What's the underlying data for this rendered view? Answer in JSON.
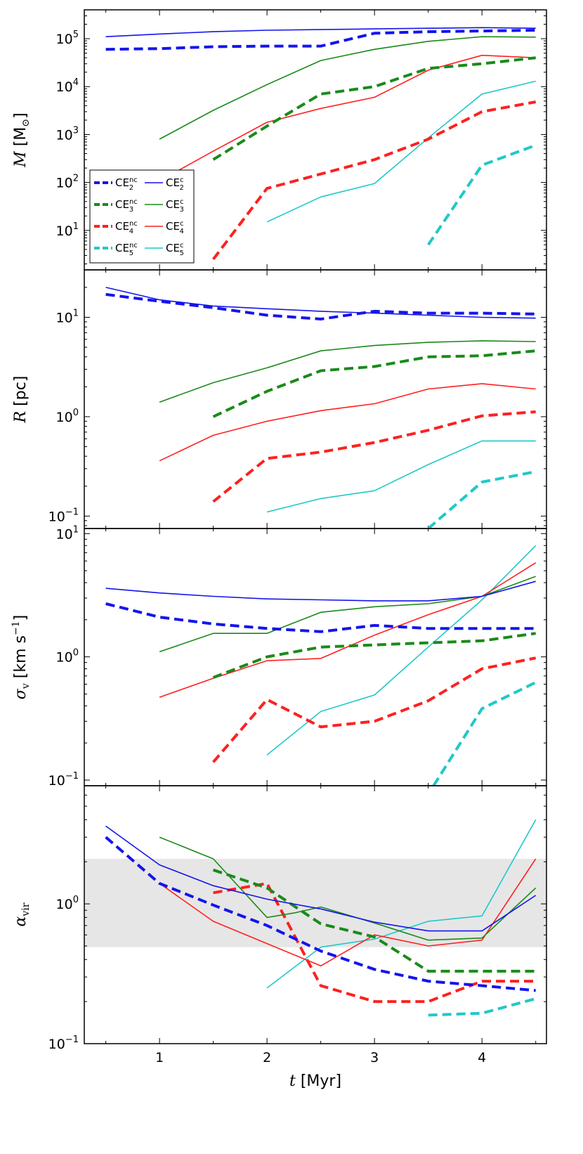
{
  "figure": {
    "xlabel_var": "t",
    "xlabel_unit": "[Myr]",
    "xlim": [
      0.3,
      4.6
    ],
    "xticks": [
      1,
      2,
      3,
      4
    ],
    "xtick_labels": [
      "1",
      "2",
      "3",
      "4"
    ]
  },
  "colors": {
    "CE2": "#1414ee",
    "CE3": "#1a8a1a",
    "CE4": "#ff2020",
    "CE5": "#20c8c8",
    "band": "#e6e6e6"
  },
  "legend": {
    "entries": [
      {
        "key": "CE2nc",
        "base": "CE",
        "sub": "2",
        "sup": "nc",
        "color": "CE2",
        "dashed": true
      },
      {
        "key": "CE2c",
        "base": "CE",
        "sub": "2",
        "sup": "c",
        "color": "CE2",
        "dashed": false
      },
      {
        "key": "CE3nc",
        "base": "CE",
        "sub": "3",
        "sup": "nc",
        "color": "CE3",
        "dashed": true
      },
      {
        "key": "CE3c",
        "base": "CE",
        "sub": "3",
        "sup": "c",
        "color": "CE3",
        "dashed": false
      },
      {
        "key": "CE4nc",
        "base": "CE",
        "sub": "4",
        "sup": "nc",
        "color": "CE4",
        "dashed": true
      },
      {
        "key": "CE4c",
        "base": "CE",
        "sub": "4",
        "sup": "c",
        "color": "CE4",
        "dashed": false
      },
      {
        "key": "CE5nc",
        "base": "CE",
        "sub": "5",
        "sup": "nc",
        "color": "CE5",
        "dashed": true
      },
      {
        "key": "CE5c",
        "base": "CE",
        "sub": "5",
        "sup": "c",
        "color": "CE5",
        "dashed": false
      }
    ]
  },
  "chart_data": [
    {
      "type": "line",
      "title": "",
      "ylabel": {
        "var": "M",
        "unit": "[M",
        "unit_sub": "⊙",
        "unit_end": "]"
      },
      "yscale": "log",
      "ylim": [
        1.5,
        400000
      ],
      "yticks": [
        {
          "value": 10,
          "base": "10",
          "exp": "1"
        },
        {
          "value": 100,
          "base": "10",
          "exp": "2"
        },
        {
          "value": 1000,
          "base": "10",
          "exp": "3"
        },
        {
          "value": 10000,
          "base": "10",
          "exp": "4"
        },
        {
          "value": 100000,
          "base": "10",
          "exp": "5"
        }
      ],
      "series": [
        {
          "key": "CE2c",
          "x": [
            0.5,
            1,
            1.5,
            2,
            2.5,
            3,
            3.5,
            4,
            4.5
          ],
          "y": [
            110000,
            125000,
            140000,
            150000,
            155000,
            160000,
            165000,
            170000,
            165000
          ]
        },
        {
          "key": "CE2nc",
          "x": [
            0.5,
            1,
            1.5,
            2,
            2.5,
            3,
            3.5,
            4,
            4.5
          ],
          "y": [
            60000,
            62000,
            68000,
            70000,
            70000,
            130000,
            140000,
            145000,
            150000
          ]
        },
        {
          "key": "CE3c",
          "x": [
            1,
            1.5,
            2,
            2.5,
            3,
            3.5,
            4,
            4.5
          ],
          "y": [
            800,
            3200,
            11000,
            35000,
            60000,
            88000,
            110000,
            108000
          ]
        },
        {
          "key": "CE3nc",
          "x": [
            1.5,
            2,
            2.5,
            3,
            3.5,
            4,
            4.5
          ],
          "y": [
            300,
            1500,
            7000,
            10000,
            24000,
            30000,
            40000
          ]
        },
        {
          "key": "CE4c",
          "x": [
            0.85,
            1.5,
            2,
            2.5,
            3,
            3.5,
            4,
            4.5
          ],
          "y": [
            70,
            450,
            1800,
            3500,
            6000,
            22000,
            45000,
            40000
          ]
        },
        {
          "key": "CE4nc",
          "x": [
            1.5,
            2,
            2.5,
            3,
            3.5,
            4,
            4.5
          ],
          "y": [
            2.5,
            75,
            150,
            300,
            800,
            3000,
            4800
          ]
        },
        {
          "key": "CE5c",
          "x": [
            2,
            2.5,
            3,
            3.5,
            4,
            4.5
          ],
          "y": [
            15,
            50,
            95,
            850,
            7000,
            13000
          ]
        },
        {
          "key": "CE5nc",
          "x": [
            3.5,
            4,
            4.5
          ],
          "y": [
            5,
            230,
            600
          ]
        }
      ]
    },
    {
      "type": "line",
      "title": "",
      "ylabel": {
        "var": "R",
        "unit": "[pc]"
      },
      "yscale": "log",
      "ylim": [
        0.075,
        30
      ],
      "yticks": [
        {
          "value": 0.1,
          "base": "10",
          "exp": "−1"
        },
        {
          "value": 1,
          "base": "10",
          "exp": "0"
        },
        {
          "value": 10,
          "base": "10",
          "exp": "1"
        }
      ],
      "series": [
        {
          "key": "CE2c",
          "x": [
            0.5,
            1,
            1.5,
            2,
            2.5,
            3,
            3.5,
            4,
            4.5
          ],
          "y": [
            20,
            15,
            13,
            12.2,
            11.5,
            11,
            10.5,
            10,
            9.8
          ]
        },
        {
          "key": "CE2nc",
          "x": [
            0.5,
            1,
            1.5,
            2,
            2.5,
            3,
            3.5,
            4,
            4.5
          ],
          "y": [
            17,
            14.5,
            12.5,
            10.5,
            9.6,
            11.5,
            11,
            11,
            10.8
          ]
        },
        {
          "key": "CE3c",
          "x": [
            1,
            1.5,
            2,
            2.5,
            3,
            3.5,
            4,
            4.5
          ],
          "y": [
            1.4,
            2.2,
            3.1,
            4.6,
            5.2,
            5.6,
            5.8,
            5.7
          ]
        },
        {
          "key": "CE3nc",
          "x": [
            1.5,
            2,
            2.5,
            3,
            3.5,
            4,
            4.5
          ],
          "y": [
            1.0,
            1.8,
            2.9,
            3.2,
            4.0,
            4.1,
            4.6
          ]
        },
        {
          "key": "CE4c",
          "x": [
            1,
            1.5,
            2,
            2.5,
            3,
            3.5,
            4,
            4.5
          ],
          "y": [
            0.36,
            0.65,
            0.9,
            1.15,
            1.35,
            1.9,
            2.15,
            1.9
          ]
        },
        {
          "key": "CE4nc",
          "x": [
            1.5,
            2,
            2.5,
            3,
            3.5,
            4,
            4.5
          ],
          "y": [
            0.14,
            0.38,
            0.44,
            0.55,
            0.73,
            1.02,
            1.12
          ]
        },
        {
          "key": "CE5c",
          "x": [
            2,
            2.5,
            3,
            3.5,
            4,
            4.5
          ],
          "y": [
            0.11,
            0.15,
            0.18,
            0.33,
            0.57,
            0.57
          ]
        },
        {
          "key": "CE5nc",
          "x": [
            3.5,
            4,
            4.5
          ],
          "y": [
            0.075,
            0.22,
            0.28
          ]
        }
      ]
    },
    {
      "type": "line",
      "title": "",
      "ylabel": {
        "var": "σ",
        "var_sub": "v",
        "unit": "[km s",
        "unit_sup": "−1",
        "unit_end": "]"
      },
      "yscale": "log",
      "ylim": [
        0.09,
        11
      ],
      "yticks": [
        {
          "value": 0.1,
          "base": "10",
          "exp": "−1"
        },
        {
          "value": 1,
          "base": "10",
          "exp": "0"
        },
        {
          "value": 10,
          "base": "10",
          "exp": "1"
        }
      ],
      "series": [
        {
          "key": "CE2c",
          "x": [
            0.5,
            1,
            1.5,
            2,
            2.5,
            3,
            3.5,
            4,
            4.5
          ],
          "y": [
            3.6,
            3.3,
            3.1,
            2.95,
            2.9,
            2.85,
            2.85,
            3.1,
            4.1
          ]
        },
        {
          "key": "CE2nc",
          "x": [
            0.5,
            1,
            1.5,
            2,
            2.5,
            3,
            3.5,
            4,
            4.5
          ],
          "y": [
            2.7,
            2.1,
            1.85,
            1.7,
            1.6,
            1.8,
            1.7,
            1.7,
            1.7
          ]
        },
        {
          "key": "CE3c",
          "x": [
            1,
            1.5,
            2,
            2.5,
            3,
            3.5,
            4,
            4.5
          ],
          "y": [
            1.1,
            1.55,
            1.55,
            2.3,
            2.55,
            2.7,
            3.1,
            4.5
          ]
        },
        {
          "key": "CE3nc",
          "x": [
            1.5,
            2,
            2.5,
            3,
            3.5,
            4,
            4.5
          ],
          "y": [
            0.68,
            1.0,
            1.2,
            1.25,
            1.3,
            1.35,
            1.55
          ]
        },
        {
          "key": "CE4c",
          "x": [
            1,
            1.5,
            2,
            2.5,
            3,
            3.5,
            4,
            4.5
          ],
          "y": [
            0.47,
            0.67,
            0.93,
            0.97,
            1.5,
            2.2,
            3.1,
            5.8
          ]
        },
        {
          "key": "CE4nc",
          "x": [
            1.5,
            2,
            2.5,
            3,
            3.5,
            4,
            4.5
          ],
          "y": [
            0.14,
            0.45,
            0.27,
            0.3,
            0.44,
            0.8,
            0.98
          ]
        },
        {
          "key": "CE5c",
          "x": [
            2,
            2.5,
            3,
            3.5,
            4,
            4.5
          ],
          "y": [
            0.16,
            0.36,
            0.49,
            1.2,
            2.9,
            8.0
          ]
        },
        {
          "key": "CE5nc",
          "x": [
            3.55,
            4,
            4.5
          ],
          "y": [
            0.09,
            0.38,
            0.62
          ]
        }
      ]
    },
    {
      "type": "line",
      "title": "",
      "ylabel": {
        "var": "α",
        "var_sub": "vir"
      },
      "yscale": "log",
      "ylim": [
        0.1,
        7
      ],
      "band": [
        0.49,
        2.1
      ],
      "yticks": [
        {
          "value": 0.1,
          "base": "10",
          "exp": "−1"
        },
        {
          "value": 1,
          "base": "10",
          "exp": "0"
        }
      ],
      "series": [
        {
          "key": "CE2c",
          "x": [
            0.5,
            1,
            1.5,
            2,
            2.5,
            3,
            3.5,
            4,
            4.5
          ],
          "y": [
            3.6,
            1.9,
            1.35,
            1.08,
            0.92,
            0.74,
            0.64,
            0.64,
            1.15
          ]
        },
        {
          "key": "CE2nc",
          "x": [
            0.5,
            1,
            1.5,
            2,
            2.5,
            3,
            3.5,
            4,
            4.5
          ],
          "y": [
            3.0,
            1.4,
            0.98,
            0.7,
            0.46,
            0.34,
            0.28,
            0.26,
            0.24
          ]
        },
        {
          "key": "CE3c",
          "x": [
            1,
            1.5,
            2,
            2.25,
            2.5,
            3,
            3.5,
            4,
            4.5
          ],
          "y": [
            3.0,
            2.1,
            0.8,
            0.86,
            0.95,
            0.73,
            0.55,
            0.57,
            1.3
          ]
        },
        {
          "key": "CE3nc",
          "x": [
            1.5,
            2,
            2.5,
            3,
            3.5,
            4,
            4.5
          ],
          "y": [
            1.75,
            1.3,
            0.72,
            0.58,
            0.33,
            0.33,
            0.33
          ]
        },
        {
          "key": "CE4c",
          "x": [
            1,
            1.5,
            2,
            2.5,
            3,
            3.5,
            4,
            4.5
          ],
          "y": [
            1.4,
            0.75,
            0.52,
            0.36,
            0.6,
            0.5,
            0.55,
            2.1
          ]
        },
        {
          "key": "CE4nc",
          "x": [
            1.5,
            2,
            2.5,
            3,
            3.5,
            4,
            4.5
          ],
          "y": [
            1.2,
            1.4,
            0.26,
            0.2,
            0.2,
            0.28,
            0.28
          ]
        },
        {
          "key": "CE5c",
          "x": [
            2,
            2.5,
            3,
            3.5,
            4,
            4.5
          ],
          "y": [
            0.25,
            0.49,
            0.56,
            0.75,
            0.82,
            4.0
          ]
        },
        {
          "key": "CE5nc",
          "x": [
            3.5,
            4,
            4.5
          ],
          "y": [
            0.16,
            0.165,
            0.21
          ]
        }
      ]
    }
  ]
}
